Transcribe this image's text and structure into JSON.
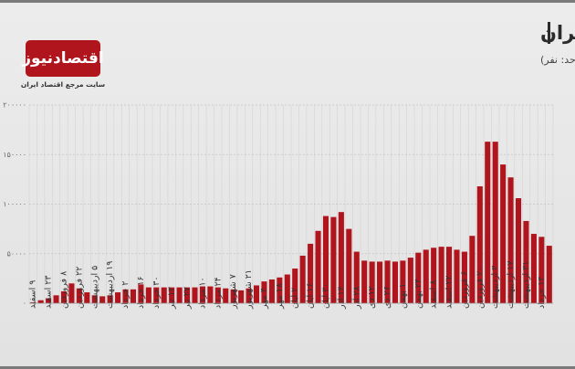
{
  "chart_data": {
    "type": "bar",
    "title": "روند هفتگی ابتلا به کرونا در ایران",
    "subtitle": "(واحد: نفر)",
    "logo_text": "اقتصادنیوز",
    "logo_tagline": "سایت مرجع اقتصاد ایران",
    "color": "#b0141c",
    "grid": true,
    "ylim": [
      0,
      200000
    ],
    "yticks": [
      {
        "value": 0,
        "label": "۰"
      },
      {
        "value": 50000,
        "label": "۵۰۰۰۰"
      },
      {
        "value": 100000,
        "label": "۱۰۰۰۰۰"
      },
      {
        "value": 150000,
        "label": "۱۵۰۰۰۰"
      },
      {
        "value": 200000,
        "label": "۲۰۰۰۰۰"
      }
    ],
    "categories": [
      "۹ اسفند",
      null,
      "۲۳ اسفند",
      null,
      "۸ فروردین",
      null,
      "۲۲ فروردین",
      null,
      "۵ اردیبهشت",
      null,
      "۱۹ اردیبهشت",
      null,
      "۲ خرداد",
      null,
      "۱۶ خرداد",
      null,
      "۳۰ خرداد",
      null,
      "۱۳ تیر",
      null,
      "۲۷ تیر",
      null,
      "۱۰ مرداد",
      null,
      "۲۴ مرداد",
      null,
      "۷ شهریور",
      null,
      "۲۱ شهریور",
      null,
      "۴ مهر",
      null,
      "۱۸ مهر",
      null,
      "۲ آبان",
      null,
      "۱۶ آبان",
      null,
      "۳۰ آبان",
      null,
      "۱۴ آذر",
      null,
      "۲۸ آذر",
      null,
      "۱۲ دی",
      null,
      "۲۶ دی",
      null,
      "۱۰ بهمن",
      null,
      "۲۴ بهمن",
      null,
      "۸ اسفند",
      null,
      "۲۲ اسفند",
      null,
      "۶ فروردین",
      null,
      "۲۰ فروردین",
      null,
      "۳ اردیبهشت",
      null,
      "۱۷ اردیبهشت",
      null,
      "۳۱ اردیبهشت",
      null,
      "۱۴ خرداد",
      null
    ],
    "values": [
      1000,
      3000,
      5000,
      8000,
      12000,
      20000,
      15000,
      11000,
      8000,
      7000,
      8000,
      11000,
      14000,
      14000,
      19000,
      16000,
      16000,
      16000,
      16000,
      16000,
      16000,
      16000,
      17000,
      17000,
      16000,
      15000,
      14000,
      13000,
      15000,
      18000,
      22000,
      24000,
      26000,
      29000,
      35000,
      48000,
      60000,
      73000,
      88000,
      87000,
      92000,
      75000,
      52000,
      43000,
      42000,
      42000,
      43000,
      42000,
      43000,
      46000,
      51000,
      54000,
      56000,
      57000,
      57000,
      54000,
      52000,
      68000,
      118000,
      163000,
      163000,
      140000,
      127000,
      106000,
      83000,
      70000,
      67000,
      58000
    ]
  }
}
